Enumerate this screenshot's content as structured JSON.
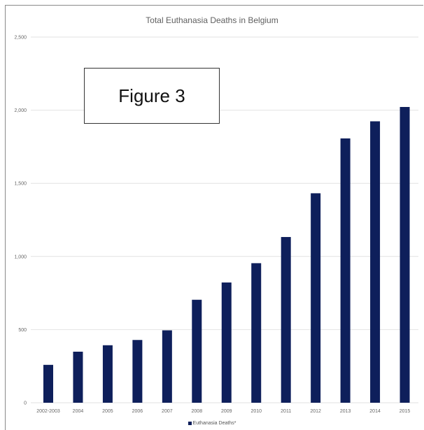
{
  "chart_data": {
    "type": "bar",
    "title": "Total Euthanasia Deaths in Belgium",
    "categories": [
      "2002-2003",
      "2004",
      "2005",
      "2006",
      "2007",
      "2008",
      "2009",
      "2010",
      "2011",
      "2012",
      "2013",
      "2014",
      "2015"
    ],
    "series": [
      {
        "name": "Euthanasia Deaths*",
        "values": [
          259,
          349,
          393,
          429,
          495,
          704,
          822,
          954,
          1133,
          1432,
          1807,
          1924,
          2022
        ]
      }
    ],
    "ylim": [
      0,
      2500
    ],
    "yticks": [
      "0",
      "500",
      "1,000",
      "1,500",
      "2,000",
      "2,500"
    ],
    "grid": true,
    "legend_position": "bottom",
    "colors": {
      "bar": "#0e1f5b",
      "grid": "#e2e2e2"
    }
  },
  "annotation": {
    "label": "Figure 3"
  }
}
